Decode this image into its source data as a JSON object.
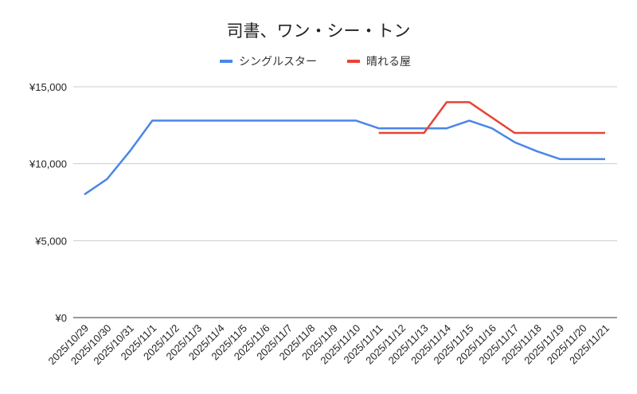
{
  "chart_data": {
    "type": "line",
    "title": "司書、ワン・シー・トン",
    "legend_position": "top",
    "grid": true,
    "categories": [
      "2025/10/29",
      "2025/10/30",
      "2025/10/31",
      "2025/11/1",
      "2025/11/2",
      "2025/11/3",
      "2025/11/4",
      "2025/11/5",
      "2025/11/6",
      "2025/11/7",
      "2025/11/8",
      "2025/11/9",
      "2025/11/10",
      "2025/11/11",
      "2025/11/12",
      "2025/11/13",
      "2025/11/14",
      "2025/11/15",
      "2025/11/16",
      "2025/11/17",
      "2025/11/18",
      "2025/11/19",
      "2025/11/20",
      "2025/11/21"
    ],
    "ylim": [
      0,
      15000
    ],
    "yticks": [
      0,
      5000,
      10000,
      15000
    ],
    "ytick_labels": [
      "¥0",
      "¥5,000",
      "¥10,000",
      "¥15,000"
    ],
    "series": [
      {
        "name": "シングルスター",
        "color": "#4a86e8",
        "values": [
          8000,
          9000,
          10800,
          12800,
          12800,
          12800,
          12800,
          12800,
          12800,
          12800,
          12800,
          12800,
          12800,
          12300,
          12300,
          12300,
          12300,
          12800,
          12300,
          11400,
          10800,
          10300,
          10300,
          10300
        ]
      },
      {
        "name": "晴れる屋",
        "color": "#e84336",
        "values": [
          null,
          null,
          null,
          null,
          null,
          null,
          null,
          null,
          null,
          null,
          null,
          null,
          null,
          12000,
          12000,
          12000,
          14000,
          14000,
          13000,
          12000,
          12000,
          12000,
          12000,
          12000
        ]
      }
    ]
  }
}
